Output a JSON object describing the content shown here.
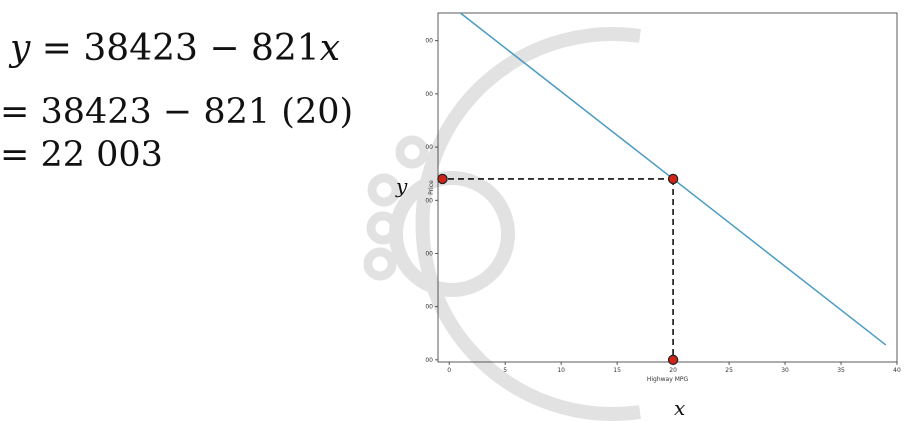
{
  "equations": {
    "line1_lhs": "y",
    "line1_rhs": " = 38423 − 821",
    "line1_var": "x",
    "line2": "= 38423 − 821 (20)",
    "line3": "= 22 003"
  },
  "axis_symbols": {
    "y": "y",
    "x": "x"
  },
  "colors": {
    "line": "#4a9bc4",
    "marker_fill": "#d02418",
    "marker_edge": "#222222",
    "guide": "#111111",
    "watermark": "#e2e2e2"
  },
  "chart_data": {
    "type": "line",
    "xlabel": "Highway MPG",
    "ylabel": "Price",
    "xlim": [
      -1,
      40
    ],
    "ylim": [
      4800,
      37600
    ],
    "xticks": [
      0,
      5,
      10,
      15,
      20,
      25,
      30,
      35,
      40
    ],
    "yticks": [
      5000,
      10000,
      15000,
      20000,
      25000,
      30000,
      35000
    ],
    "grid": false,
    "series": [
      {
        "x": [
          1,
          39
        ],
        "y": [
          37602,
          6404
        ]
      }
    ],
    "guide": {
      "x": 20,
      "y": 22003
    },
    "markers": [
      {
        "x": -0.6,
        "y": 22003
      },
      {
        "x": 20,
        "y": 22003
      },
      {
        "x": 20,
        "y": 5000
      }
    ]
  }
}
